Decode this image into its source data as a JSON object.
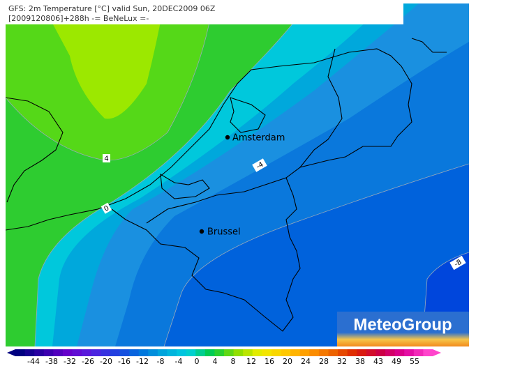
{
  "header": {
    "line1": "GFS: 2m Temperature [°C] valid Sun, 20DEC2009 06Z",
    "line2": "[2009120806]+288h  -= BeNeLux =-"
  },
  "cities": [
    {
      "label": "Amsterdam"
    },
    {
      "label": "Brussel"
    }
  ],
  "contour_labels": [
    "4",
    "0",
    "-4",
    "-8"
  ],
  "logo": "MeteoGroup",
  "colorbar": {
    "ticks": [
      -44,
      -38,
      -32,
      -26,
      -20,
      -16,
      -12,
      -8,
      -4,
      0,
      4,
      8,
      12,
      16,
      20,
      24,
      28,
      32,
      38,
      43,
      49,
      55
    ]
  }
}
